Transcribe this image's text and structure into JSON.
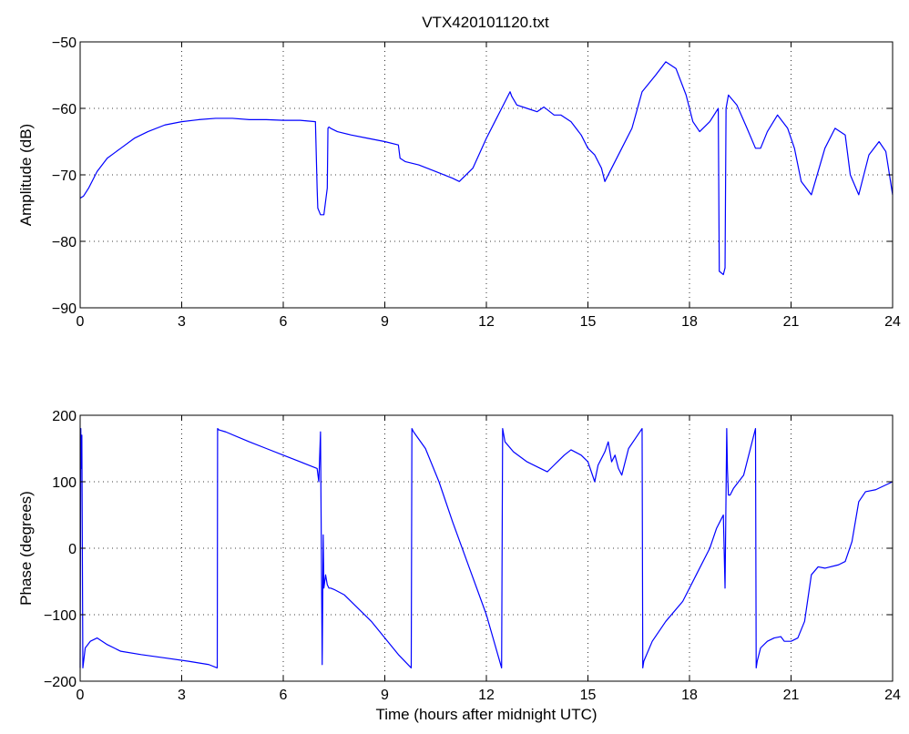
{
  "title": "VTX420101120.txt",
  "chart_data": [
    {
      "type": "line",
      "title": "VTX420101120.txt",
      "xlabel": "",
      "ylabel": "Amplitude (dB)",
      "xlim": [
        0,
        24
      ],
      "ylim": [
        -90,
        -50
      ],
      "xticks": [
        0,
        3,
        6,
        9,
        12,
        15,
        18,
        21,
        24
      ],
      "yticks": [
        -90,
        -80,
        -70,
        -60,
        -50
      ],
      "xtick_labels": [
        "0",
        "3",
        "6",
        "9",
        "12",
        "15",
        "18",
        "21",
        "24"
      ],
      "ytick_labels": [
        "−90",
        "−80",
        "−70",
        "−60",
        "−50"
      ],
      "grid": true,
      "line_color": "#0000ff",
      "x": [
        0,
        0.1,
        0.25,
        0.5,
        0.8,
        1.2,
        1.6,
        2.0,
        2.5,
        3.0,
        3.5,
        4.0,
        4.5,
        5.0,
        5.5,
        6.0,
        6.5,
        6.95,
        7.0,
        7.02,
        7.1,
        7.2,
        7.3,
        7.32,
        7.35,
        7.4,
        7.6,
        8.0,
        8.5,
        9.0,
        9.4,
        9.45,
        9.6,
        10.0,
        10.5,
        11.0,
        11.2,
        11.6,
        12.0,
        12.3,
        12.5,
        12.7,
        12.75,
        12.9,
        13.2,
        13.5,
        13.7,
        13.8,
        14.0,
        14.2,
        14.5,
        14.8,
        15.0,
        15.2,
        15.4,
        15.5,
        15.7,
        16.0,
        16.3,
        16.6,
        17.0,
        17.3,
        17.6,
        17.9,
        18.1,
        18.3,
        18.6,
        18.85,
        18.88,
        19.0,
        19.05,
        19.08,
        19.15,
        19.4,
        19.7,
        19.95,
        20.1,
        20.3,
        20.6,
        20.9,
        21.1,
        21.3,
        21.6,
        22.0,
        22.3,
        22.6,
        22.75,
        23.0,
        23.3,
        23.6,
        23.8,
        24.0
      ],
      "y": [
        -73.5,
        -73.2,
        -72,
        -69.5,
        -67.5,
        -66,
        -64.5,
        -63.5,
        -62.5,
        -62,
        -61.7,
        -61.5,
        -61.5,
        -61.7,
        -61.7,
        -61.8,
        -61.8,
        -62,
        -72,
        -75,
        -76,
        -76,
        -72,
        -63,
        -62.8,
        -63,
        -63.5,
        -64,
        -64.5,
        -65,
        -65.5,
        -67.5,
        -68,
        -68.5,
        -69.5,
        -70.5,
        -71,
        -69,
        -64.5,
        -61.5,
        -59.5,
        -57.5,
        -58.2,
        -59.5,
        -60,
        -60.5,
        -59.8,
        -60.2,
        -61,
        -61,
        -62,
        -64,
        -66,
        -67,
        -69,
        -71,
        -69,
        -66,
        -63,
        -57.5,
        -55,
        -53,
        -54,
        -58,
        -62,
        -63.5,
        -62,
        -60,
        -84.5,
        -85,
        -84,
        -60,
        -58,
        -59.5,
        -63,
        -66,
        -66,
        -63.5,
        -61,
        -63,
        -66,
        -71,
        -73,
        -66,
        -63,
        -64,
        -70,
        -73,
        -67,
        -65,
        -66.5,
        -73
      ]
    },
    {
      "type": "line",
      "title": "",
      "xlabel": "Time (hours after midnight UTC)",
      "ylabel": "Phase (degrees)",
      "xlim": [
        0,
        24
      ],
      "ylim": [
        -200,
        200
      ],
      "xticks": [
        0,
        3,
        6,
        9,
        12,
        15,
        18,
        21,
        24
      ],
      "yticks": [
        -200,
        -100,
        0,
        100,
        200
      ],
      "xtick_labels": [
        "0",
        "3",
        "6",
        "9",
        "12",
        "15",
        "18",
        "21",
        "24"
      ],
      "ytick_labels": [
        "−200",
        "−100",
        "0",
        "100",
        "200"
      ],
      "grid": true,
      "line_color": "#0000ff",
      "x": [
        0,
        0.02,
        0.03,
        0.05,
        0.08,
        0.15,
        0.3,
        0.5,
        0.8,
        1.2,
        1.8,
        2.5,
        3.2,
        3.8,
        4.05,
        4.06,
        4.1,
        4.3,
        5.0,
        5.5,
        6.0,
        6.5,
        7.0,
        7.05,
        7.1,
        7.15,
        7.18,
        7.2,
        7.25,
        7.3,
        7.35,
        7.4,
        7.5,
        7.8,
        8.2,
        8.6,
        9.0,
        9.4,
        9.78,
        9.8,
        9.85,
        10.2,
        10.6,
        11.0,
        11.5,
        12.0,
        12.45,
        12.48,
        12.55,
        12.8,
        13.2,
        13.6,
        13.8,
        14.0,
        14.3,
        14.5,
        14.8,
        15.0,
        15.2,
        15.3,
        15.5,
        15.6,
        15.7,
        15.8,
        15.9,
        16.0,
        16.2,
        16.4,
        16.6,
        16.62,
        16.65,
        16.9,
        17.3,
        17.8,
        18.2,
        18.6,
        18.8,
        18.9,
        19.0,
        19.05,
        19.1,
        19.12,
        19.15,
        19.2,
        19.3,
        19.6,
        19.95,
        19.97,
        20.0,
        20.1,
        20.3,
        20.5,
        20.7,
        20.8,
        21.0,
        21.2,
        21.4,
        21.6,
        21.8,
        22.0,
        22.4,
        22.6,
        22.8,
        23.0,
        23.2,
        23.5,
        24.0
      ],
      "y": [
        -180,
        180,
        120,
        170,
        -180,
        -150,
        -140,
        -135,
        -145,
        -155,
        -160,
        -165,
        -170,
        -175,
        -180,
        180,
        178,
        175,
        160,
        150,
        140,
        130,
        120,
        100,
        175,
        -175,
        20,
        -60,
        -40,
        -55,
        -60,
        -60,
        -62,
        -70,
        -90,
        -110,
        -135,
        -160,
        -180,
        180,
        175,
        150,
        100,
        40,
        -30,
        -100,
        -180,
        180,
        160,
        145,
        130,
        120,
        115,
        125,
        140,
        148,
        140,
        130,
        100,
        125,
        145,
        160,
        130,
        140,
        120,
        110,
        150,
        165,
        180,
        -180,
        -170,
        -140,
        -110,
        -80,
        -40,
        0,
        30,
        40,
        50,
        -60,
        180,
        120,
        80,
        80,
        90,
        110,
        180,
        -180,
        -170,
        -150,
        -140,
        -135,
        -133,
        -140,
        -140,
        -135,
        -110,
        -40,
        -28,
        -30,
        -25,
        -20,
        10,
        70,
        85,
        88,
        100
      ]
    }
  ]
}
